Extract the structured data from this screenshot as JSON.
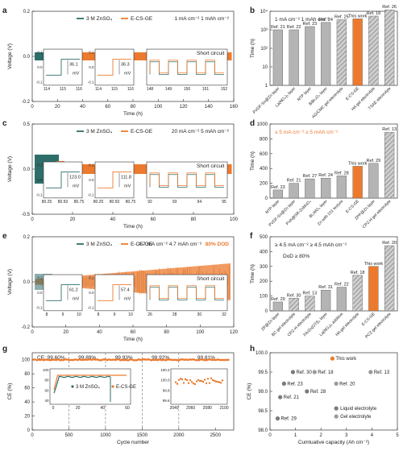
{
  "colors": {
    "teal": "#2e6e6a",
    "orange": "#ec7a2e",
    "gray": "#b4b4b4",
    "hatch": "#8c8c8c",
    "cyc": "#8a8a8a",
    "text": "#222222"
  },
  "panels": [
    {
      "id": "a",
      "letter": "a",
      "legend": [
        "3 M ZnSO₄",
        "E-CS-GE"
      ],
      "note": "1 mA cm⁻²  1 mAh cm⁻²",
      "xlabel": "Time (h)",
      "ylabel": "Voltage (V)",
      "xticks": [
        0,
        20,
        40,
        60,
        80,
        100,
        120,
        140,
        160
      ],
      "yticks": [
        0.2,
        0.0,
        -0.2
      ],
      "xlim": [
        0,
        160
      ],
      "ylim": [
        -0.2,
        0.2
      ],
      "insets": [
        {
          "xt": [
            "114",
            "115",
            "116"
          ],
          "yt": [
            "0.1",
            "0.0",
            "-0.1"
          ],
          "val": "36.1",
          "unit": "mV",
          "series": "teal"
        },
        {
          "xt": [
            "114",
            "115",
            "116"
          ],
          "yt": [
            "0.1",
            "0.0",
            "-0.1"
          ],
          "val": "36.3",
          "unit": "mV",
          "series": "orange"
        },
        {
          "xt": [
            "148",
            "149",
            "150",
            "151",
            "152"
          ],
          "yt": [],
          "label": "Short circuit"
        }
      ]
    },
    {
      "id": "c",
      "letter": "c",
      "legend": [
        "3 M ZnSO₄",
        "E-CS-GE"
      ],
      "note": "20 mA cm⁻²  5 mAh cm⁻²",
      "xlabel": "Time (h)",
      "ylabel": "Voltage (V)",
      "xticks": [
        0,
        20,
        40,
        60,
        80,
        100
      ],
      "yticks": [
        0.5,
        0.0,
        -0.5
      ],
      "xlim": [
        0,
        100
      ],
      "ylim": [
        -0.5,
        0.5
      ],
      "insets": [
        {
          "xt": [
            "80.25",
            "80.50",
            "80.75"
          ],
          "yt": [
            "0.1",
            "0.0",
            "-0.1"
          ],
          "val": "123.0",
          "unit": "mV",
          "series": "teal"
        },
        {
          "xt": [
            "80.25",
            "80.50",
            "80.75"
          ],
          "yt": [
            "0.1",
            "0.0",
            "-0.1"
          ],
          "val": "111.8",
          "unit": "mV",
          "series": "orange"
        },
        {
          "xt": [
            "92",
            "93",
            "94",
            "95"
          ],
          "yt": [],
          "label": "Short circuit"
        }
      ]
    },
    {
      "id": "e",
      "letter": "e",
      "legend": [
        "3 M ZnSO₄",
        "E-CS-GE"
      ],
      "note": "4.7 mA cm⁻²  4.7 mAh cm⁻²",
      "dod": "80% DOD",
      "xlabel": "Time (h)",
      "ylabel": "Voltage (V)",
      "xticks": [
        0,
        20,
        40,
        60,
        80,
        100,
        120
      ],
      "yticks": [
        0.2,
        0.0,
        -0.2
      ],
      "xlim": [
        0,
        120
      ],
      "ylim": [
        -0.2,
        0.2
      ],
      "insets": [
        {
          "xt": [
            "8",
            "9",
            "10"
          ],
          "yt": [
            "0.1",
            "0.0",
            "-0.1"
          ],
          "val": "61.2",
          "unit": "mV",
          "series": "teal"
        },
        {
          "xt": [
            "8",
            "9",
            "10"
          ],
          "yt": [
            "0.1",
            "0.0",
            "-0.1"
          ],
          "val": "57.4",
          "unit": "mV",
          "series": "orange"
        },
        {
          "xt": [
            "26",
            "28",
            "30",
            "32"
          ],
          "yt": [],
          "label": "Short circuit"
        }
      ]
    }
  ],
  "chart_data": [
    {
      "type": "bar",
      "panel": "b",
      "title": "1 mA cm⁻²  1 mAh cm⁻²",
      "ylabel": "Time (h)",
      "yscale": "log",
      "ylim": [
        1,
        10000
      ],
      "yticks": [
        "1",
        "10",
        "10²",
        "10³",
        "10⁴"
      ],
      "categories": [
        "PVDF-Sn@Zn layer",
        "La(NO₃)₃ layer",
        "NTP layer",
        "BiBr₃O₄ layer",
        "AG/CMC gel electrolyte",
        "E-CS-GE",
        "HA gel electrolyte",
        "TSAE electrolyte"
      ],
      "refs": [
        "Ref. 21",
        "Ref. 22",
        "Ref. 23",
        "Ref. 24",
        "Ref. 25",
        "This work",
        "Ref. 18",
        "Ref. 26"
      ],
      "values": [
        1000,
        1000,
        1500,
        2500,
        3500,
        3900,
        5500,
        12000
      ],
      "kind": [
        "layer",
        "layer",
        "layer",
        "layer",
        "gel",
        "work",
        "gel",
        "gel"
      ]
    },
    {
      "type": "bar",
      "panel": "d",
      "title": "≥ 5 mA cm⁻²  ≥ 5 mAh cm⁻²",
      "ylabel": "Time (h)",
      "ylim": [
        0,
        1000
      ],
      "yticks": [
        "0",
        "200",
        "400",
        "600",
        "800",
        "1000"
      ],
      "categories": [
        "NTP layer",
        "PVDF-Sn@Zn layer",
        "PVA@SR-ZnMoO₄",
        "Bi₂WO₆ layer",
        "Zn with 101 texture",
        "E-CS-GE",
        "ZPP@Zn layer",
        "CPZ-H gel electrolyte"
      ],
      "refs": [
        "Ref. 23",
        "Ref. 21",
        "Ref. 27",
        "Ref. 24",
        "Ref. 28",
        "This work",
        "Ref. 29",
        "Ref. 13"
      ],
      "values": [
        110,
        200,
        260,
        270,
        300,
        430,
        470,
        890
      ],
      "kind": [
        "layer",
        "layer",
        "layer",
        "layer",
        "layer",
        "work",
        "layer",
        "gel"
      ]
    },
    {
      "type": "bar",
      "panel": "f",
      "title": "≥ 4.5 mA cm⁻²  ≥ 4.5 mAh cm⁻²",
      "subtitle": "DoD ≥ 80%",
      "ylabel": "Time (h)",
      "ylim": [
        0,
        500
      ],
      "yticks": [
        "0",
        "100",
        "200",
        "300",
        "400",
        "500"
      ],
      "categories": [
        "ZP@Zn layer",
        "BC gel electrolyte",
        "CPZ-H electrolyte",
        "FA/Zn(OTf)₂ layer",
        "La(NO₃)₃ additive",
        "HA gel electrolyte",
        "E-CS-GE",
        "PCZ-gel electrolyte"
      ],
      "refs": [
        "Ref. 29",
        "Ref. 30",
        "Ref. 13",
        "Ref. 31",
        "Ref. 22",
        "Ref. 18",
        "This work",
        "Ref. 20"
      ],
      "values": [
        60,
        85,
        100,
        140,
        160,
        240,
        300,
        440
      ],
      "kind": [
        "layer",
        "gel",
        "gel",
        "layer",
        "layer",
        "gel",
        "work",
        "gel"
      ]
    },
    {
      "type": "scatter",
      "panel": "g",
      "xlabel": "Cycle number",
      "ylabel": "CE (%)",
      "xlim": [
        0,
        2750
      ],
      "ylim": [
        0,
        110
      ],
      "xticks": [
        0,
        500,
        1000,
        1500,
        2000,
        2500
      ],
      "yticks": [
        0,
        20,
        40,
        60,
        80,
        100
      ],
      "segments": [
        {
          "label": "CE: 99.60%",
          "x0": 0,
          "x1": 500
        },
        {
          "label": "99.89%",
          "x0": 500,
          "x1": 1000
        },
        {
          "label": "99.93%",
          "x0": 1000,
          "x1": 1500
        },
        {
          "label": "99.92%",
          "x0": 1500,
          "x1": 2000
        },
        {
          "label": "99.81%",
          "x0": 2000,
          "x1": 2750
        }
      ],
      "series": [
        {
          "name": "3 M ZnSO₄",
          "color": "teal"
        },
        {
          "name": "E-CS-GE",
          "color": "orange"
        }
      ],
      "inset1": {
        "xticks": [
          "0",
          "20",
          "40",
          "60"
        ],
        "yticks": [
          "40",
          "60",
          "80",
          "100"
        ]
      },
      "inset2": {
        "xticks": [
          "2040",
          "2060",
          "2080",
          "2100"
        ],
        "yticks": [
          "99.6",
          "99.8",
          "100.0",
          "100.2"
        ]
      }
    },
    {
      "type": "scatter",
      "panel": "h",
      "xlabel": "Cumluative capacity (Ah cm⁻²)",
      "ylabel": "CE (%)",
      "xlim": [
        0,
        5
      ],
      "ylim": [
        98.0,
        100.0
      ],
      "xticks": [
        0,
        1,
        2,
        3,
        4,
        5
      ],
      "yticks": [
        "98.0",
        "98.5",
        "99.0",
        "99.5",
        "100.0"
      ],
      "points": [
        {
          "label": "This work",
          "x": 2.45,
          "y": 99.85,
          "kind": "work"
        },
        {
          "label": "Ref. 30",
          "x": 0.9,
          "y": 99.5,
          "kind": "liquid"
        },
        {
          "label": "Ref. 18",
          "x": 1.75,
          "y": 99.5,
          "kind": "gel"
        },
        {
          "label": "Ref. 13",
          "x": 3.95,
          "y": 99.5,
          "kind": "gel"
        },
        {
          "label": "Ref. 23",
          "x": 0.55,
          "y": 99.2,
          "kind": "liquid"
        },
        {
          "label": "Ref. 28",
          "x": 1.45,
          "y": 99.0,
          "kind": "liquid"
        },
        {
          "label": "Ref. 20",
          "x": 2.6,
          "y": 99.2,
          "kind": "gel"
        },
        {
          "label": "Ref. 21",
          "x": 0.4,
          "y": 98.85,
          "kind": "liquid"
        },
        {
          "label": "Ref. 29",
          "x": 0.3,
          "y": 98.3,
          "kind": "liquid"
        }
      ],
      "legend": [
        "Liquid electrolyte",
        "Gel electrolyte"
      ]
    }
  ]
}
